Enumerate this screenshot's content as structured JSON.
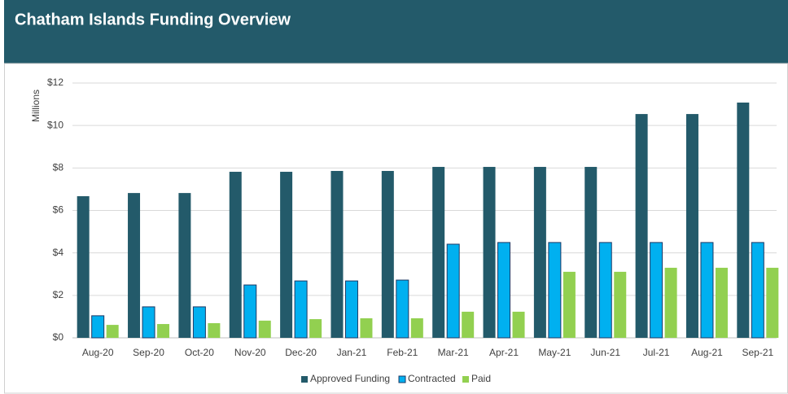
{
  "chart_data": {
    "type": "bar",
    "title": "Chatham Islands Funding Overview",
    "y_axis_label": "Millions",
    "categories": [
      "Aug-20",
      "Sep-20",
      "Oct-20",
      "Nov-20",
      "Dec-20",
      "Jan-21",
      "Feb-21",
      "Mar-21",
      "Apr-21",
      "May-21",
      "Jun-21",
      "Jul-21",
      "Aug-21",
      "Sep-21"
    ],
    "series": [
      {
        "name": "Approved Funding",
        "color": "#235a6a",
        "values": [
          6.67,
          6.82,
          6.82,
          7.82,
          7.82,
          7.86,
          7.86,
          8.05,
          8.05,
          8.05,
          8.05,
          10.54,
          10.54,
          11.08
        ]
      },
      {
        "name": "Contracted",
        "color": "#00b0f0",
        "values": [
          1.04,
          1.46,
          1.46,
          2.49,
          2.68,
          2.68,
          2.72,
          4.41,
          4.49,
          4.49,
          4.49,
          4.49,
          4.49,
          4.49
        ]
      },
      {
        "name": "Paid",
        "color": "#92d050",
        "values": [
          0.61,
          0.65,
          0.69,
          0.81,
          0.88,
          0.92,
          0.92,
          1.23,
          1.23,
          3.11,
          3.11,
          3.3,
          3.3,
          3.3
        ]
      }
    ],
    "ylim": [
      0,
      12
    ],
    "yticks": [
      {
        "value": 0,
        "label": "$0"
      },
      {
        "value": 2,
        "label": "$2"
      },
      {
        "value": 4,
        "label": "$4"
      },
      {
        "value": 6,
        "label": "$6"
      },
      {
        "value": 8,
        "label": "$8"
      },
      {
        "value": 10,
        "label": "$10"
      },
      {
        "value": 12,
        "label": "$12"
      }
    ],
    "grid": true,
    "legend": "bottom"
  }
}
